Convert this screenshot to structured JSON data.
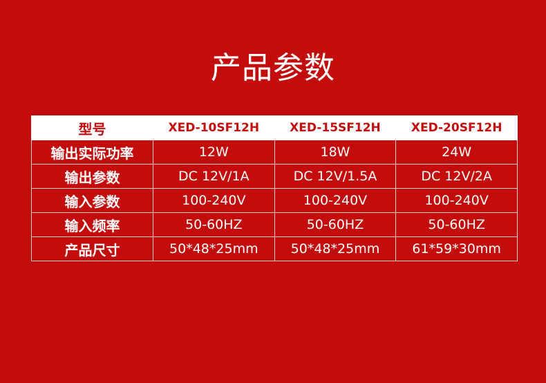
{
  "title": "产品参数",
  "header": {
    "label": "型号",
    "models": [
      "XED-10SF12H",
      "XED-15SF12H",
      "XED-20SF12H"
    ]
  },
  "rows": [
    {
      "label": "输出实际功率",
      "values": [
        "12W",
        "18W",
        "24W"
      ]
    },
    {
      "label": "输出参数",
      "values": [
        "DC 12V/1A",
        "DC 12V/1.5A",
        "DC 12V/2A"
      ]
    },
    {
      "label": "输入参数",
      "values": [
        "100-240V",
        "100-240V",
        "100-240V"
      ]
    },
    {
      "label": "输入频率",
      "values": [
        "50-60HZ",
        "50-60HZ",
        "50-60HZ"
      ]
    },
    {
      "label": "产品尺寸",
      "values": [
        "50*48*25mm",
        "50*48*25mm",
        "61*59*30mm"
      ]
    }
  ],
  "colors": {
    "background": "#c30d0d",
    "header_bg": "#ffffff"
  }
}
